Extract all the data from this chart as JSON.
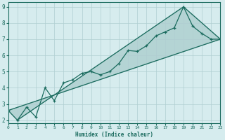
{
  "xlabel": "Humidex (Indice chaleur)",
  "xlim": [
    0,
    23
  ],
  "ylim": [
    1.8,
    9.3
  ],
  "xticks": [
    0,
    1,
    2,
    3,
    4,
    5,
    6,
    7,
    8,
    9,
    10,
    11,
    12,
    13,
    14,
    15,
    16,
    17,
    18,
    19,
    20,
    21,
    22,
    23
  ],
  "yticks": [
    2,
    3,
    4,
    5,
    6,
    7,
    8,
    9
  ],
  "bg_color": "#d6ecee",
  "line_color": "#1a6b5e",
  "grid_color": "#b0ced2",
  "line1_x": [
    0,
    1,
    2,
    3,
    4,
    5,
    6,
    7,
    8,
    9,
    10,
    11,
    12,
    13,
    14,
    15,
    16,
    17,
    18,
    19,
    20,
    21,
    22,
    23
  ],
  "line1_y": [
    2.6,
    2.0,
    2.8,
    2.2,
    4.0,
    3.2,
    4.3,
    4.5,
    4.9,
    5.0,
    4.8,
    5.0,
    5.5,
    6.3,
    6.25,
    6.6,
    7.2,
    7.45,
    7.7,
    9.0,
    7.8,
    7.35,
    7.0,
    7.0
  ],
  "line2_x": [
    0,
    23
  ],
  "line2_y": [
    2.6,
    7.0
  ],
  "line3_x": [
    1,
    19,
    23
  ],
  "line3_y": [
    2.0,
    9.0,
    7.0
  ]
}
